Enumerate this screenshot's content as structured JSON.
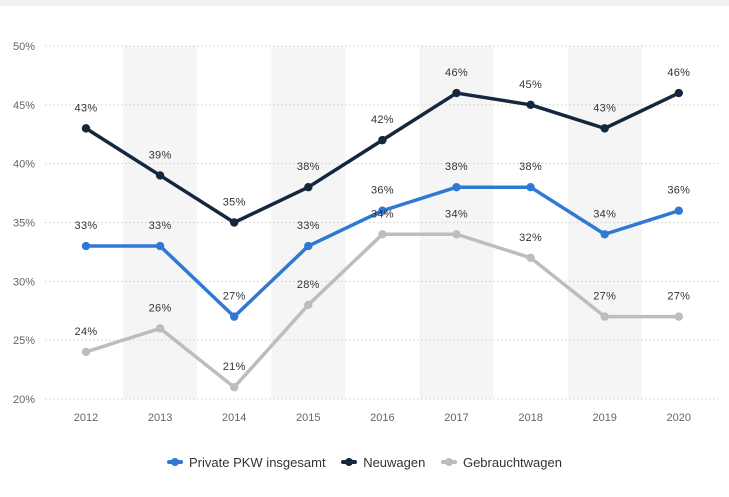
{
  "chart_data": {
    "type": "line",
    "categories": [
      "2012",
      "2013",
      "2014",
      "2015",
      "2016",
      "2017",
      "2018",
      "2019",
      "2020"
    ],
    "ylim": [
      20,
      50
    ],
    "yticks": [
      20,
      25,
      30,
      35,
      40,
      45,
      50
    ],
    "ytick_suffix": "%",
    "legend_position": "bottom",
    "grid": "horizontal-dotted",
    "alternate_column_shading": true,
    "series": [
      {
        "name": "Private PKW insgesamt",
        "color": "#2f78d4",
        "values": [
          33,
          33,
          27,
          33,
          36,
          38,
          38,
          34,
          36
        ],
        "labels": [
          "33%",
          "33%",
          "27%",
          "33%",
          "36%",
          "38%",
          "38%",
          "34%",
          "36%"
        ]
      },
      {
        "name": "Neuwagen",
        "color": "#14273c",
        "values": [
          43,
          39,
          35,
          38,
          42,
          46,
          45,
          43,
          46
        ],
        "labels": [
          "43%",
          "39%",
          "35%",
          "38%",
          "42%",
          "46%",
          "45%",
          "43%",
          "46%"
        ]
      },
      {
        "name": "Gebrauchtwagen",
        "color": "#bdbdbd",
        "values": [
          24,
          26,
          21,
          28,
          34,
          34,
          32,
          27,
          27
        ],
        "labels": [
          "24%",
          "26%",
          "21%",
          "28%",
          "34%",
          "34%",
          "32%",
          "27%",
          "27%"
        ]
      }
    ]
  }
}
